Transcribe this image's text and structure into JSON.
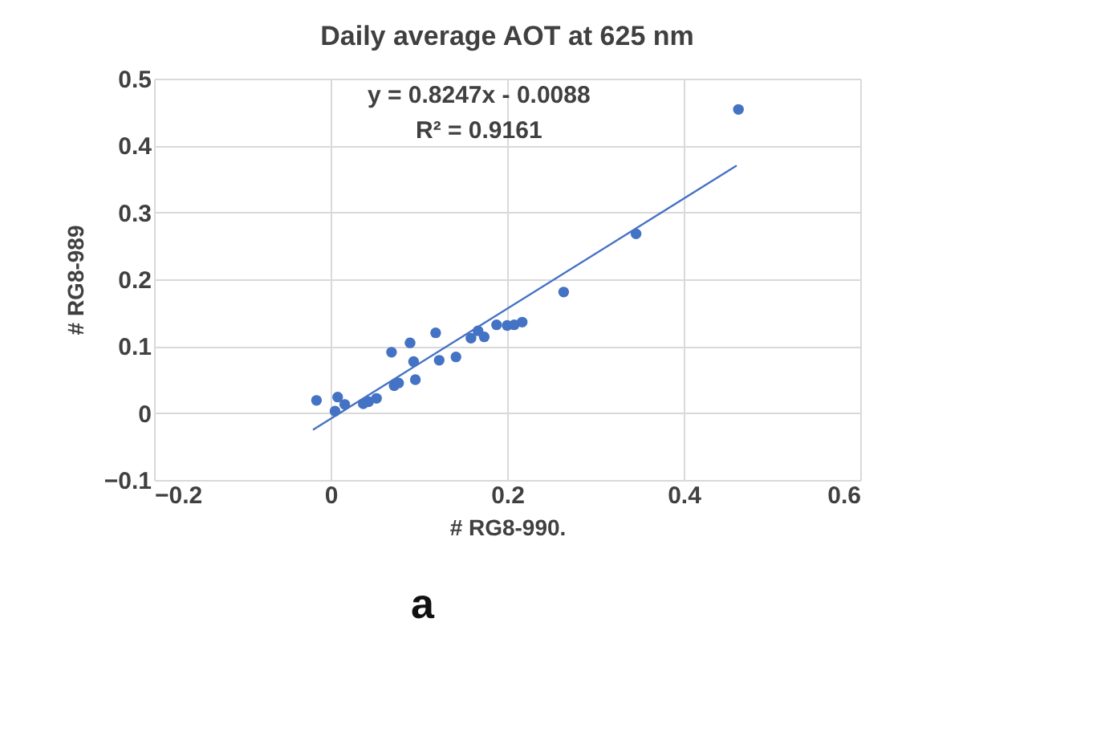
{
  "chart_data": {
    "type": "scatter",
    "title": "Daily average AOT at 625 nm",
    "xlabel": "# RG8-990.",
    "ylabel": "# RG8-989",
    "annotations": [
      "y = 0.8247x - 0.0088",
      "R² = 0.9161",
      "a"
    ],
    "xlim": [
      -0.2,
      0.6
    ],
    "xticks": [
      -0.2,
      0,
      0.2,
      0.4,
      0.6
    ],
    "ylim": [
      -0.1,
      0.5
    ],
    "yticks": [
      -0.1,
      0,
      0.1,
      0.2,
      0.3,
      0.4,
      0.5
    ],
    "grid": true,
    "series": [
      {
        "color": "#4472c4",
        "marker": "circle",
        "x": [
          -0.016,
          0.008,
          0.005,
          0.016,
          0.037,
          0.043,
          0.052,
          0.072,
          0.077,
          0.069,
          0.09,
          0.094,
          0.096,
          0.119,
          0.123,
          0.142,
          0.159,
          0.167,
          0.174,
          0.188,
          0.2,
          0.208,
          0.217,
          0.264,
          0.346,
          0.462
        ],
        "values": [
          0.019,
          0.024,
          0.003,
          0.013,
          0.014,
          0.017,
          0.022,
          0.041,
          0.045,
          0.091,
          0.105,
          0.077,
          0.05,
          0.12,
          0.079,
          0.084,
          0.112,
          0.123,
          0.114,
          0.132,
          0.131,
          0.132,
          0.136,
          0.181,
          0.268,
          0.454
        ]
      },
      {
        "type": "line",
        "color": "#4472c4",
        "marker": "none",
        "line_style": "solid",
        "x": [
          -0.02,
          0.46
        ],
        "values": [
          -0.025,
          0.37
        ]
      }
    ]
  }
}
